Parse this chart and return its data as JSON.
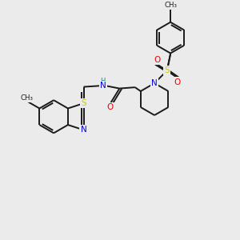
{
  "bg_color": "#ebebeb",
  "bond_color": "#1a1a1a",
  "atom_colors": {
    "S": "#cccc00",
    "N": "#0000ee",
    "O": "#ee0000",
    "H": "#008888",
    "C": "#1a1a1a"
  },
  "bond_width": 1.4,
  "font_size": 7.5
}
